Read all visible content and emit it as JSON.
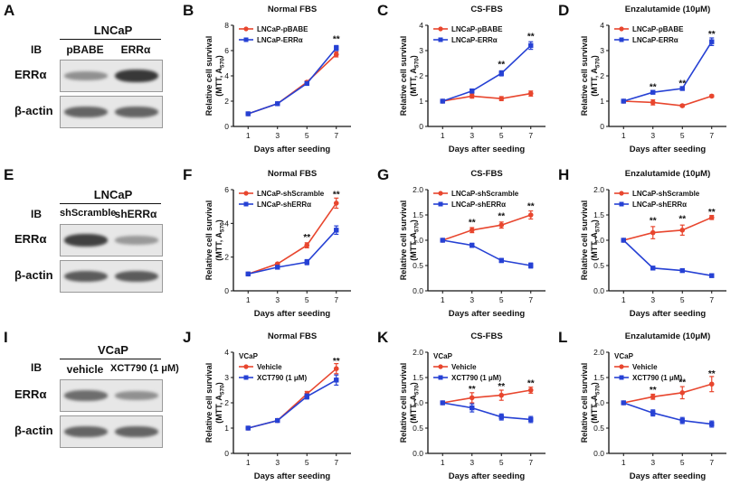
{
  "rows": [
    {
      "blot": {
        "letter": "A",
        "cell_line": "LNCaP",
        "ib_label": "IB",
        "lanes": [
          "pBABE",
          "ERRα"
        ],
        "rows": [
          {
            "label": "ERRα",
            "intensity": [
              0.35,
              0.85
            ]
          },
          {
            "label": "β-actin",
            "intensity": [
              0.6,
              0.6
            ]
          }
        ]
      },
      "charts": [
        "B",
        "C",
        "D"
      ]
    },
    {
      "blot": {
        "letter": "E",
        "cell_line": "LNCaP",
        "ib_label": "IB",
        "lanes": [
          "shScramble",
          "shERRα"
        ],
        "rows": [
          {
            "label": "ERRα",
            "intensity": [
              0.8,
              0.3
            ]
          },
          {
            "label": "β-actin",
            "intensity": [
              0.65,
              0.65
            ]
          }
        ]
      },
      "charts": [
        "F",
        "G",
        "H"
      ]
    },
    {
      "blot": {
        "letter": "I",
        "cell_line": "VCaP",
        "ib_label": "IB",
        "lanes": [
          "vehicle",
          "XCT790 (1 μM)"
        ],
        "rows": [
          {
            "label": "ERRα",
            "intensity": [
              0.55,
              0.35
            ]
          },
          {
            "label": "β-actin",
            "intensity": [
              0.6,
              0.6
            ]
          }
        ]
      },
      "charts": [
        "J",
        "K",
        "L"
      ]
    }
  ],
  "chart_data": [
    {
      "letter": "B",
      "type": "line",
      "title": "Normal FBS",
      "xlabel": "Days after seeding",
      "ylabel": "Relative cell survival",
      "ylabel2": "(MTT, A",
      "ylabel2_sub": "570",
      "ylabel2_end": ")",
      "x": [
        1,
        3,
        5,
        7
      ],
      "xticks": [
        "1",
        "3",
        "5",
        "7"
      ],
      "ylim": [
        0,
        8
      ],
      "yticks": [
        "0",
        "2",
        "4",
        "6",
        "8"
      ],
      "legend_header": "",
      "series": [
        {
          "name": "LNCaP-pBABE",
          "color": "#e8462e",
          "marker": "circle",
          "values": [
            1.0,
            1.8,
            3.5,
            5.7
          ],
          "err": [
            0.05,
            0.05,
            0.1,
            0.2
          ]
        },
        {
          "name": "LNCaP-ERRα",
          "color": "#2641d4",
          "marker": "square",
          "values": [
            1.0,
            1.8,
            3.4,
            6.2
          ],
          "err": [
            0.05,
            0.05,
            0.1,
            0.2
          ]
        }
      ],
      "annotations": [
        {
          "x": 7,
          "y": 6.9,
          "text": "**"
        }
      ]
    },
    {
      "letter": "C",
      "type": "line",
      "title": "CS-FBS",
      "xlabel": "Days after seeding",
      "ylabel": "Relative cell survival",
      "ylabel2": "(MTT, A",
      "ylabel2_sub": "570",
      "ylabel2_end": ")",
      "x": [
        1,
        3,
        5,
        7
      ],
      "xticks": [
        "1",
        "3",
        "5",
        "7"
      ],
      "ylim": [
        0,
        4
      ],
      "yticks": [
        "0",
        "1",
        "2",
        "3",
        "4"
      ],
      "legend_header": "",
      "series": [
        {
          "name": "LNCaP-pBABE",
          "color": "#e8462e",
          "marker": "circle",
          "values": [
            1.0,
            1.2,
            1.1,
            1.3
          ],
          "err": [
            0.03,
            0.08,
            0.08,
            0.1
          ]
        },
        {
          "name": "LNCaP-ERRα",
          "color": "#2641d4",
          "marker": "square",
          "values": [
            1.0,
            1.4,
            2.1,
            3.2
          ],
          "err": [
            0.03,
            0.08,
            0.1,
            0.15
          ]
        }
      ],
      "annotations": [
        {
          "x": 5,
          "y": 2.45,
          "text": "**"
        },
        {
          "x": 7,
          "y": 3.55,
          "text": "**"
        }
      ]
    },
    {
      "letter": "D",
      "type": "line",
      "title": "Enzalutamide (10μM)",
      "xlabel": "Days after seeding",
      "ylabel": "Relative cell survival",
      "ylabel2": "(MTT, A",
      "ylabel2_sub": "570",
      "ylabel2_end": ")",
      "x": [
        1,
        3,
        5,
        7
      ],
      "xticks": [
        "1",
        "3",
        "5",
        "7"
      ],
      "ylim": [
        0,
        4
      ],
      "yticks": [
        "0",
        "1",
        "2",
        "3",
        "4"
      ],
      "legend_header": "",
      "series": [
        {
          "name": "LNCaP-pBABE",
          "color": "#e8462e",
          "marker": "circle",
          "values": [
            1.0,
            0.95,
            0.82,
            1.2
          ],
          "err": [
            0.03,
            0.1,
            0.05,
            0.05
          ]
        },
        {
          "name": "LNCaP-ERRα",
          "color": "#2641d4",
          "marker": "square",
          "values": [
            1.0,
            1.35,
            1.5,
            3.35
          ],
          "err": [
            0.03,
            0.05,
            0.05,
            0.15
          ]
        }
      ],
      "annotations": [
        {
          "x": 3,
          "y": 1.55,
          "text": "**"
        },
        {
          "x": 5,
          "y": 1.7,
          "text": "**"
        },
        {
          "x": 7,
          "y": 3.65,
          "text": "**"
        }
      ]
    },
    {
      "letter": "F",
      "type": "line",
      "title": "Normal FBS",
      "xlabel": "Days after seeding",
      "ylabel": "Relative cell survival",
      "ylabel2": "(MTT, A",
      "ylabel2_sub": "570",
      "ylabel2_end": ")",
      "x": [
        1,
        3,
        5,
        7
      ],
      "xticks": [
        "1",
        "3",
        "5",
        "7"
      ],
      "ylim": [
        0,
        6
      ],
      "yticks": [
        "0",
        "2",
        "4",
        "6"
      ],
      "legend_header": "",
      "series": [
        {
          "name": "LNCaP-shScramble",
          "color": "#e8462e",
          "marker": "circle",
          "values": [
            1.0,
            1.6,
            2.7,
            5.2
          ],
          "err": [
            0.05,
            0.05,
            0.15,
            0.3
          ]
        },
        {
          "name": "LNCaP-shERRα",
          "color": "#2641d4",
          "marker": "square",
          "values": [
            1.0,
            1.4,
            1.7,
            3.6
          ],
          "err": [
            0.05,
            0.05,
            0.15,
            0.25
          ]
        }
      ],
      "annotations": [
        {
          "x": 5,
          "y": 3.15,
          "text": "**"
        },
        {
          "x": 7,
          "y": 5.7,
          "text": "**"
        }
      ]
    },
    {
      "letter": "G",
      "type": "line",
      "title": "CS-FBS",
      "xlabel": "Days after seeding",
      "ylabel": "Relative cell survival",
      "ylabel2": "(MTT, A",
      "ylabel2_sub": "570",
      "ylabel2_end": ")",
      "x": [
        1,
        3,
        5,
        7
      ],
      "xticks": [
        "1",
        "3",
        "5",
        "7"
      ],
      "ylim": [
        0,
        2.0
      ],
      "yticks": [
        "0.0",
        "0.5",
        "1.0",
        "1.5",
        "2.0"
      ],
      "legend_header": "",
      "series": [
        {
          "name": "LNCaP-shScramble",
          "color": "#e8462e",
          "marker": "circle",
          "values": [
            1.0,
            1.2,
            1.3,
            1.5
          ],
          "err": [
            0.02,
            0.05,
            0.06,
            0.08
          ]
        },
        {
          "name": "LNCaP-shERRα",
          "color": "#2641d4",
          "marker": "square",
          "values": [
            1.0,
            0.9,
            0.6,
            0.5
          ],
          "err": [
            0.02,
            0.04,
            0.04,
            0.05
          ]
        }
      ],
      "annotations": [
        {
          "x": 3,
          "y": 1.35,
          "text": "**"
        },
        {
          "x": 5,
          "y": 1.47,
          "text": "**"
        },
        {
          "x": 7,
          "y": 1.67,
          "text": "**"
        }
      ]
    },
    {
      "letter": "H",
      "type": "line",
      "title": "Enzalutamide (10μM)",
      "xlabel": "Days after seeding",
      "ylabel": "Relative cell survival",
      "ylabel2": "(MTT, A",
      "ylabel2_sub": "570",
      "ylabel2_end": ")",
      "x": [
        1,
        3,
        5,
        7
      ],
      "xticks": [
        "1",
        "3",
        "5",
        "7"
      ],
      "ylim": [
        0,
        2.0
      ],
      "yticks": [
        "0.0",
        "0.5",
        "1.0",
        "1.5",
        "2.0"
      ],
      "legend_header": "",
      "series": [
        {
          "name": "LNCaP-shScramble",
          "color": "#e8462e",
          "marker": "circle",
          "values": [
            1.0,
            1.15,
            1.2,
            1.45
          ],
          "err": [
            0.02,
            0.12,
            0.1,
            0.04
          ]
        },
        {
          "name": "LNCaP-shERRα",
          "color": "#2641d4",
          "marker": "square",
          "values": [
            1.0,
            0.45,
            0.4,
            0.3
          ],
          "err": [
            0.02,
            0.02,
            0.02,
            0.02
          ]
        }
      ],
      "annotations": [
        {
          "x": 3,
          "y": 1.38,
          "text": "**"
        },
        {
          "x": 5,
          "y": 1.42,
          "text": "**"
        },
        {
          "x": 7,
          "y": 1.55,
          "text": "**"
        }
      ]
    },
    {
      "letter": "J",
      "type": "line",
      "title": "Normal FBS",
      "xlabel": "Days after seeding",
      "ylabel": "Relative cell survival",
      "ylabel2": "(MTT, A",
      "ylabel2_sub": "570",
      "ylabel2_end": ")",
      "x": [
        1,
        3,
        5,
        7
      ],
      "xticks": [
        "1",
        "3",
        "5",
        "7"
      ],
      "ylim": [
        0,
        4
      ],
      "yticks": [
        "0",
        "1",
        "2",
        "3",
        "4"
      ],
      "legend_header": "VCaP",
      "series": [
        {
          "name": "Vehicle",
          "color": "#e8462e",
          "marker": "circle",
          "values": [
            1.0,
            1.3,
            2.35,
            3.35
          ],
          "err": [
            0.03,
            0.05,
            0.1,
            0.2
          ]
        },
        {
          "name": "XCT790 (1 μM)",
          "color": "#2641d4",
          "marker": "square",
          "values": [
            1.0,
            1.3,
            2.25,
            2.9
          ],
          "err": [
            0.03,
            0.05,
            0.1,
            0.2
          ]
        }
      ],
      "annotations": [
        {
          "x": 7,
          "y": 3.65,
          "text": "**"
        }
      ]
    },
    {
      "letter": "K",
      "type": "line",
      "title": "CS-FBS",
      "xlabel": "Days after seeding",
      "ylabel": "Relative cell survival",
      "ylabel2": "(MTT, A",
      "ylabel2_sub": "570",
      "ylabel2_end": ")",
      "x": [
        1,
        3,
        5,
        7
      ],
      "xticks": [
        "1",
        "3",
        "5",
        "7"
      ],
      "ylim": [
        0,
        2.0
      ],
      "yticks": [
        "0.0",
        "0.5",
        "1.0",
        "1.5",
        "2.0"
      ],
      "legend_header": "VCaP",
      "series": [
        {
          "name": "Vehicle",
          "color": "#e8462e",
          "marker": "circle",
          "values": [
            1.0,
            1.1,
            1.15,
            1.25
          ],
          "err": [
            0.02,
            0.1,
            0.1,
            0.06
          ]
        },
        {
          "name": "XCT790 (1 μM)",
          "color": "#2641d4",
          "marker": "square",
          "values": [
            1.0,
            0.9,
            0.72,
            0.67
          ],
          "err": [
            0.02,
            0.08,
            0.06,
            0.06
          ]
        }
      ],
      "annotations": [
        {
          "x": 3,
          "y": 1.27,
          "text": "**"
        },
        {
          "x": 5,
          "y": 1.32,
          "text": "**"
        },
        {
          "x": 7,
          "y": 1.38,
          "text": "**"
        }
      ]
    },
    {
      "letter": "L",
      "type": "line",
      "title": "Enzalutamide (10μM)",
      "xlabel": "Days after seeding",
      "ylabel": "Relative cell survival",
      "ylabel2": "(MTT, A",
      "ylabel2_sub": "570",
      "ylabel2_end": ")",
      "x": [
        1,
        3,
        5,
        7
      ],
      "xticks": [
        "1",
        "3",
        "5",
        "7"
      ],
      "ylim": [
        0,
        2.0
      ],
      "yticks": [
        "0.0",
        "0.5",
        "1.0",
        "1.5",
        "2.0"
      ],
      "legend_header": "VCaP",
      "series": [
        {
          "name": "Vehicle",
          "color": "#e8462e",
          "marker": "circle",
          "values": [
            1.0,
            1.12,
            1.2,
            1.37
          ],
          "err": [
            0.02,
            0.05,
            0.12,
            0.15
          ]
        },
        {
          "name": "XCT790 (1 μM)",
          "color": "#2641d4",
          "marker": "square",
          "values": [
            1.0,
            0.8,
            0.65,
            0.58
          ],
          "err": [
            0.02,
            0.06,
            0.06,
            0.06
          ]
        }
      ],
      "annotations": [
        {
          "x": 3,
          "y": 1.25,
          "text": "**"
        },
        {
          "x": 5,
          "y": 1.4,
          "text": "**"
        },
        {
          "x": 7,
          "y": 1.57,
          "text": "**"
        }
      ]
    }
  ]
}
